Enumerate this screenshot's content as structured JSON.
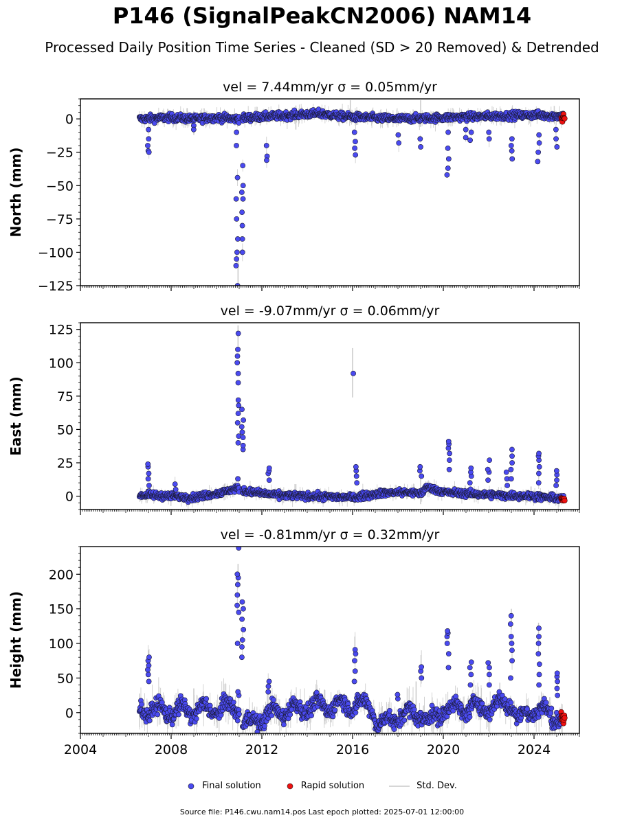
{
  "title": "P146 (SignalPeakCN2006) NAM14",
  "subtitle": "Processed Daily Position Time Series - Cleaned (SD > 20 Removed) & Detrended",
  "footer": "Source file: P146.cwu.nam14.pos  Last epoch plotted: 2025-07-01 12:00:00",
  "legend": {
    "final": "Final solution",
    "rapid": "Rapid solution",
    "std": "Std. Dev."
  },
  "colors": {
    "final": "#4a4af0",
    "rapid": "#ee1111",
    "std": "#c8c8c8"
  },
  "chart_data": [
    {
      "type": "scatter",
      "title": "vel = 7.44mm/yr   σ = 0.05mm/yr",
      "ylabel": "North (mm)",
      "xlim": [
        2004.0,
        2026.0
      ],
      "ylim": [
        -125,
        15
      ],
      "yticks": [
        0,
        -25,
        -50,
        -75,
        -100,
        -125
      ],
      "ytick_labels": [
        "0",
        "−25",
        "−50",
        "−75",
        "−100",
        "−125"
      ],
      "x_start": 2006.6,
      "x_end": 2025.3,
      "baseline": [
        [
          2006.6,
          0
        ],
        [
          2008,
          1
        ],
        [
          2009,
          0
        ],
        [
          2010,
          1
        ],
        [
          2010.9,
          0
        ],
        [
          2011.4,
          1
        ],
        [
          2013.5,
          3
        ],
        [
          2014.5,
          4
        ],
        [
          2015.5,
          2
        ],
        [
          2016.5,
          1
        ],
        [
          2018,
          0
        ],
        [
          2020,
          1
        ],
        [
          2022,
          2
        ],
        [
          2024,
          3
        ],
        [
          2025.3,
          2
        ]
      ],
      "noise": 2.0,
      "offsets": [
        {
          "x": 2007.0,
          "values": [
            -8,
            -15,
            -20,
            -24,
            -25
          ]
        },
        {
          "x": 2009.0,
          "values": [
            -5,
            -8
          ]
        },
        {
          "x": 2010.9,
          "values": [
            -10,
            -20,
            -44,
            -60,
            -75,
            -90,
            -100,
            -105,
            -110,
            -125
          ]
        },
        {
          "x": 2011.15,
          "values": [
            -35,
            -50,
            -55,
            -60,
            -70,
            -80,
            -90,
            -100
          ]
        },
        {
          "x": 2012.2,
          "values": [
            -20,
            -28,
            -31
          ]
        },
        {
          "x": 2016.1,
          "values": [
            -10,
            -17,
            -22,
            -27
          ]
        },
        {
          "x": 2018.0,
          "values": [
            -12,
            -18
          ]
        },
        {
          "x": 2019.0,
          "values": [
            -15,
            -21
          ]
        },
        {
          "x": 2020.2,
          "values": [
            -10,
            -22,
            -30,
            -37,
            -42
          ]
        },
        {
          "x": 2021.0,
          "values": [
            -8,
            -14
          ]
        },
        {
          "x": 2021.2,
          "values": [
            -10,
            -16
          ]
        },
        {
          "x": 2022.0,
          "values": [
            -10,
            -15
          ]
        },
        {
          "x": 2023.0,
          "values": [
            -15,
            -20,
            -24,
            -30
          ]
        },
        {
          "x": 2024.2,
          "values": [
            -12,
            -18,
            -25,
            -32
          ]
        },
        {
          "x": 2025.0,
          "values": [
            -8,
            -15,
            -21
          ]
        }
      ],
      "rapid": {
        "x_start": 2025.2,
        "x_end": 2025.35,
        "y": 0.5
      },
      "std_spikes": [
        {
          "x": 2008.7,
          "y1": -5,
          "y2": 8
        },
        {
          "x": 2009.0,
          "y1": -12,
          "y2": 6
        },
        {
          "x": 2010.95,
          "y1": -128,
          "y2": -105
        },
        {
          "x": 2013.5,
          "y1": -8,
          "y2": 10
        },
        {
          "x": 2015.9,
          "y1": -3,
          "y2": 14
        },
        {
          "x": 2019.0,
          "y1": -6,
          "y2": 14
        }
      ]
    },
    {
      "type": "scatter",
      "title": "vel = -9.07mm/yr   σ = 0.06mm/yr",
      "ylabel": "East (mm)",
      "xlim": [
        2004.0,
        2026.0
      ],
      "ylim": [
        -10,
        130
      ],
      "yticks": [
        0,
        25,
        50,
        75,
        100,
        125
      ],
      "ytick_labels": [
        "0",
        "25",
        "50",
        "75",
        "100",
        "125"
      ],
      "x_start": 2006.6,
      "x_end": 2025.3,
      "baseline": [
        [
          2006.6,
          1
        ],
        [
          2008,
          0
        ],
        [
          2009,
          -1
        ],
        [
          2010.3,
          3
        ],
        [
          2010.9,
          6
        ],
        [
          2011.2,
          4
        ],
        [
          2012.5,
          1
        ],
        [
          2014,
          0
        ],
        [
          2016,
          -1
        ],
        [
          2017.2,
          2
        ],
        [
          2018,
          3
        ],
        [
          2019,
          2
        ],
        [
          2019.3,
          7
        ],
        [
          2020,
          3
        ],
        [
          2022,
          1
        ],
        [
          2024,
          0
        ],
        [
          2025.3,
          -2
        ]
      ],
      "noise": 1.8,
      "offsets": [
        {
          "x": 2007.0,
          "values": [
            8,
            13,
            17,
            22,
            24
          ]
        },
        {
          "x": 2008.2,
          "values": [
            5,
            9
          ]
        },
        {
          "x": 2010.95,
          "values": [
            13,
            40,
            45,
            55,
            62,
            68,
            72,
            85,
            92,
            100,
            105,
            110,
            122
          ]
        },
        {
          "x": 2011.15,
          "values": [
            35,
            38,
            44,
            48,
            52,
            57,
            65
          ]
        },
        {
          "x": 2012.3,
          "values": [
            12,
            17,
            19,
            21
          ]
        },
        {
          "x": 2016.0,
          "values": [
            92
          ]
        },
        {
          "x": 2016.15,
          "values": [
            10,
            15,
            19,
            22
          ]
        },
        {
          "x": 2019.0,
          "values": [
            15,
            19,
            22
          ]
        },
        {
          "x": 2020.25,
          "values": [
            20,
            27,
            32,
            36,
            39,
            41
          ]
        },
        {
          "x": 2021.2,
          "values": [
            10,
            15,
            18,
            21
          ]
        },
        {
          "x": 2022.0,
          "values": [
            12,
            18,
            20,
            27
          ]
        },
        {
          "x": 2022.8,
          "values": [
            8,
            13,
            18
          ]
        },
        {
          "x": 2023.0,
          "values": [
            13,
            20,
            25,
            30,
            35
          ]
        },
        {
          "x": 2024.2,
          "values": [
            10,
            17,
            22,
            27,
            30,
            32
          ]
        },
        {
          "x": 2025.0,
          "values": [
            8,
            12,
            16,
            19
          ]
        }
      ],
      "rapid": {
        "x_start": 2025.2,
        "x_end": 2025.35,
        "y": -2
      },
      "std_spikes": [
        {
          "x": 2010.95,
          "y1": 110,
          "y2": 128
        },
        {
          "x": 2013.5,
          "y1": -5,
          "y2": 9
        },
        {
          "x": 2016.0,
          "y1": 74,
          "y2": 111
        },
        {
          "x": 2019.0,
          "y1": -6,
          "y2": 14
        }
      ]
    },
    {
      "type": "scatter",
      "title": "vel = -0.81mm/yr   σ = 0.32mm/yr",
      "ylabel": "Height (mm)",
      "xlim": [
        2004.0,
        2026.0
      ],
      "ylim": [
        -30,
        240
      ],
      "yticks": [
        0,
        50,
        100,
        150,
        200
      ],
      "ytick_labels": [
        "0",
        "50",
        "100",
        "150",
        "200"
      ],
      "xticks": [
        2004,
        2008,
        2012,
        2016,
        2020,
        2024
      ],
      "xtick_labels": [
        "2004",
        "2008",
        "2012",
        "2016",
        "2020",
        "2024"
      ],
      "x_start": 2006.6,
      "x_end": 2025.3,
      "baseline": [
        [
          2006.6,
          5
        ],
        [
          2008,
          2
        ],
        [
          2010,
          5
        ],
        [
          2011,
          8
        ],
        [
          2011.1,
          -20
        ],
        [
          2012.5,
          0
        ],
        [
          2014,
          8
        ],
        [
          2016,
          12
        ],
        [
          2016.9,
          8
        ],
        [
          2017.1,
          -20
        ],
        [
          2018,
          -5
        ],
        [
          2019,
          0
        ],
        [
          2019.4,
          -15
        ],
        [
          2020,
          5
        ],
        [
          2022,
          8
        ],
        [
          2023,
          15
        ],
        [
          2023.3,
          -10
        ],
        [
          2024,
          5
        ],
        [
          2025,
          -5
        ],
        [
          2025.3,
          -10
        ]
      ],
      "noise": 8.0,
      "seasonal": 9.0,
      "offsets": [
        {
          "x": 2007.0,
          "values": [
            45,
            55,
            62,
            68,
            75,
            80
          ]
        },
        {
          "x": 2010.95,
          "values": [
            25,
            30,
            100,
            145,
            155,
            170,
            185,
            195,
            200,
            238
          ]
        },
        {
          "x": 2011.15,
          "values": [
            80,
            95,
            105,
            120,
            135,
            150,
            160
          ]
        },
        {
          "x": 2012.3,
          "values": [
            30,
            38,
            45
          ]
        },
        {
          "x": 2016.1,
          "values": [
            45,
            60,
            75,
            85,
            91
          ]
        },
        {
          "x": 2018.0,
          "values": [
            20,
            26
          ]
        },
        {
          "x": 2019.0,
          "values": [
            50,
            60,
            66
          ]
        },
        {
          "x": 2020.2,
          "values": [
            65,
            85,
            100,
            110,
            115,
            118
          ]
        },
        {
          "x": 2021.2,
          "values": [
            40,
            55,
            65,
            73
          ]
        },
        {
          "x": 2022.0,
          "values": [
            40,
            55,
            65,
            72
          ]
        },
        {
          "x": 2023.0,
          "values": [
            50,
            75,
            90,
            100,
            110,
            128,
            140
          ]
        },
        {
          "x": 2024.2,
          "values": [
            40,
            55,
            70,
            85,
            100,
            110,
            122
          ]
        },
        {
          "x": 2025.0,
          "values": [
            25,
            35,
            45,
            52,
            57
          ]
        }
      ],
      "rapid": {
        "x_start": 2025.2,
        "x_end": 2025.35,
        "y": -8
      },
      "std_spikes": [
        {
          "x": 2007.0,
          "y1": 60,
          "y2": 90
        },
        {
          "x": 2009.0,
          "y1": -15,
          "y2": 35
        },
        {
          "x": 2010.95,
          "y1": 180,
          "y2": 215
        },
        {
          "x": 2016.1,
          "y1": 70,
          "y2": 110
        },
        {
          "x": 2018.8,
          "y1": -20,
          "y2": 45
        },
        {
          "x": 2023.0,
          "y1": 120,
          "y2": 150
        },
        {
          "x": 2024.2,
          "y1": 95,
          "y2": 130
        }
      ]
    }
  ]
}
